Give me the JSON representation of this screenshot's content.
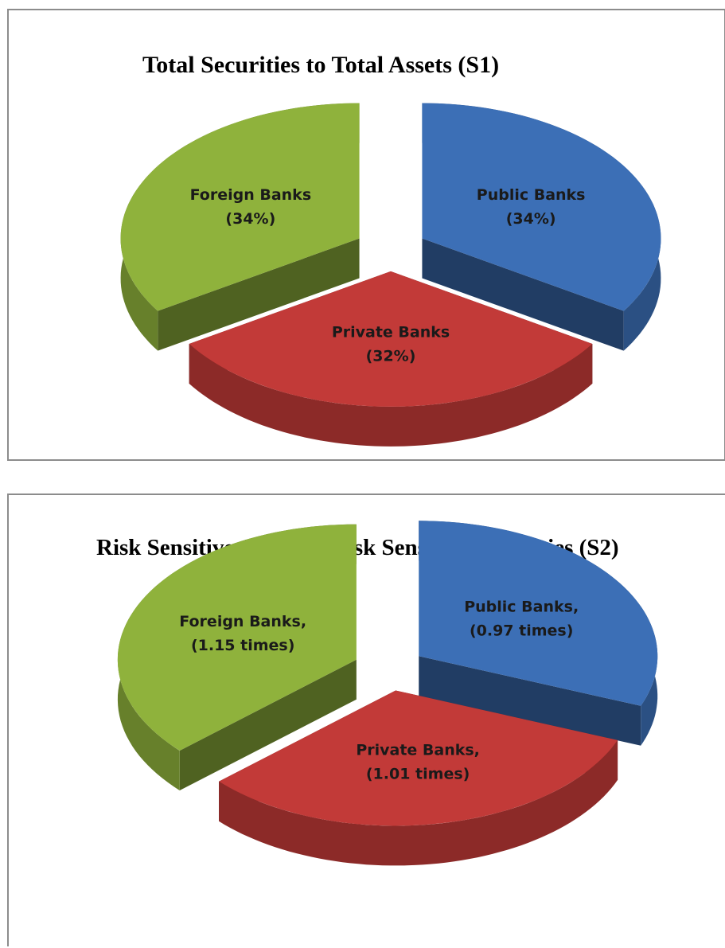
{
  "chart_data": [
    {
      "type": "pie",
      "style": "3d-exploded",
      "title": "Total Securities to Total Assets (S1)",
      "slices": [
        {
          "name": "Public Banks",
          "value": 34,
          "label_lines": [
            "Public Banks",
            "(34%)"
          ],
          "color": "#3c6fb6"
        },
        {
          "name": "Private Banks",
          "value": 32,
          "label_lines": [
            "Private Banks",
            "(32%)"
          ],
          "color": "#c23a38"
        },
        {
          "name": "Foreign Banks",
          "value": 34,
          "label_lines": [
            "Foreign Banks",
            "(34%)"
          ],
          "color": "#8fb23c"
        }
      ]
    },
    {
      "type": "pie",
      "style": "3d-exploded",
      "title": "Risk Sensitive Assets to Risk Sensitive Liabilities (S2)",
      "slices": [
        {
          "name": "Public Banks",
          "value": 0.97,
          "label_lines": [
            "Public Banks,",
            "(0.97 times)"
          ],
          "color": "#3c6fb6"
        },
        {
          "name": "Private Banks",
          "value": 1.01,
          "label_lines": [
            "Private Banks,",
            "(1.01 times)"
          ],
          "color": "#c23a38"
        },
        {
          "name": "Foreign Banks",
          "value": 1.15,
          "label_lines": [
            "Foreign Banks,",
            "(1.15 times)"
          ],
          "color": "#8fb23c"
        }
      ]
    }
  ]
}
